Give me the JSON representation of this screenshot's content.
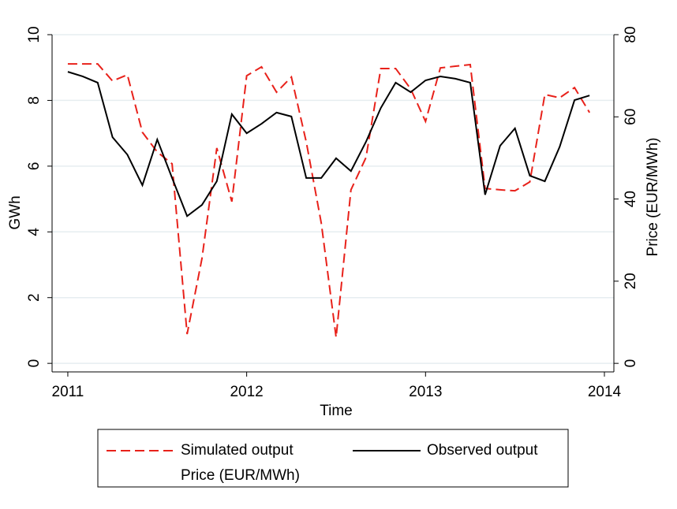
{
  "chart_data": {
    "type": "line",
    "x_label": "Time",
    "y_label": "GWh",
    "y2_label": "Price (EUR/MWh)",
    "x": [
      2011,
      2011.083,
      2011.167,
      2011.25,
      2011.333,
      2011.417,
      2011.5,
      2011.583,
      2011.667,
      2011.75,
      2011.833,
      2011.917,
      2012,
      2012.083,
      2012.167,
      2012.25,
      2012.333,
      2012.417,
      2012.5,
      2012.583,
      2012.667,
      2012.75,
      2012.833,
      2012.917,
      2013,
      2013.083,
      2013.167,
      2013.25,
      2013.333,
      2013.417,
      2013.5,
      2013.583,
      2013.667,
      2013.75,
      2013.833,
      2013.917
    ],
    "series": [
      {
        "name": "Simulated output",
        "color": "#e8211a",
        "dash": true,
        "values": [
          9.11,
          9.11,
          9.11,
          8.59,
          8.78,
          7.03,
          6.43,
          6.07,
          0.89,
          3.19,
          6.55,
          4.92,
          8.75,
          9.02,
          8.25,
          8.71,
          6.74,
          4.27,
          0.79,
          5.28,
          6.26,
          8.97,
          8.97,
          8.35,
          7.36,
          8.99,
          9.04,
          9.09,
          5.32,
          5.28,
          5.25,
          5.52,
          8.18,
          8.08,
          8.39,
          7.63
        ]
      },
      {
        "name": "Observed output",
        "color": "#000000",
        "dash": false,
        "values": [
          8.87,
          8.73,
          8.54,
          6.88,
          6.35,
          5.42,
          6.81,
          5.64,
          4.48,
          4.82,
          5.54,
          7.58,
          7.0,
          7.29,
          7.63,
          7.51,
          5.64,
          5.64,
          6.24,
          5.85,
          6.74,
          7.77,
          8.54,
          8.25,
          8.61,
          8.73,
          8.66,
          8.54,
          5.13,
          6.62,
          7.15,
          5.71,
          5.54,
          6.59,
          8.01,
          8.15
        ]
      }
    ],
    "legend_extra": "Price (EUR/MWh)",
    "xlim": [
      2010.912,
      2014.053
    ],
    "xticks": [
      2011,
      2012,
      2013,
      2014
    ],
    "ylim": [
      -0.26,
      10
    ],
    "yticks": [
      0,
      2,
      4,
      6,
      8,
      10
    ],
    "y2lim": [
      -2.08,
      80
    ],
    "y2ticks": [
      0,
      20,
      40,
      60,
      80
    ],
    "grid": true
  }
}
